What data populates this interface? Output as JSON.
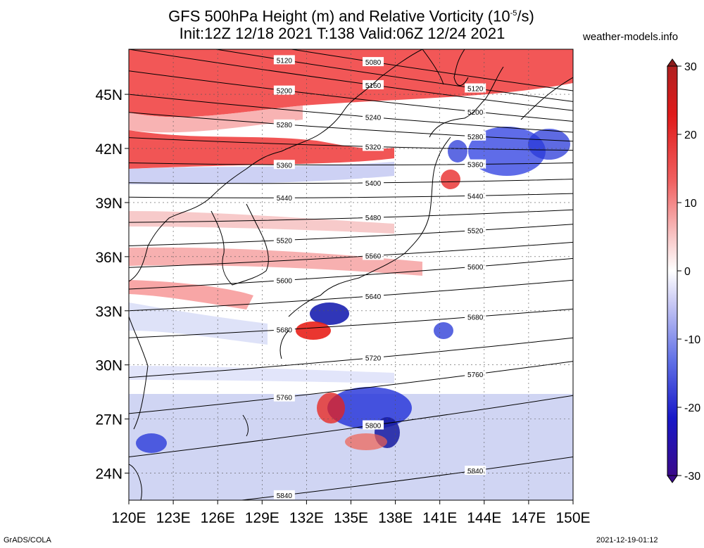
{
  "header": {
    "title_prefix": "GFS 500hPa Height (m) and Relative Vorticity (10",
    "title_exp": "-5",
    "title_suffix": "/s)",
    "subtitle": "Init:12Z 12/18 2021 T:138 Valid:06Z 12/24 2021",
    "site": "weather-models.info"
  },
  "footer": {
    "left": "GrADS/COLA",
    "right": "2021-12-19-01:12"
  },
  "map": {
    "lon_range": [
      120,
      150
    ],
    "lat_range": [
      22.5,
      47.5
    ],
    "lat_ticks": [
      {
        "value": 24,
        "label": "24N"
      },
      {
        "value": 27,
        "label": "27N"
      },
      {
        "value": 30,
        "label": "30N"
      },
      {
        "value": 33,
        "label": "33N"
      },
      {
        "value": 36,
        "label": "36N"
      },
      {
        "value": 39,
        "label": "39N"
      },
      {
        "value": 42,
        "label": "42N"
      },
      {
        "value": 45,
        "label": "45N"
      }
    ],
    "lon_ticks": [
      {
        "value": 120,
        "label": "120E"
      },
      {
        "value": 123,
        "label": "123E"
      },
      {
        "value": 126,
        "label": "126E"
      },
      {
        "value": 129,
        "label": "129E"
      },
      {
        "value": 132,
        "label": "132E"
      },
      {
        "value": 135,
        "label": "135E"
      },
      {
        "value": 138,
        "label": "138E"
      },
      {
        "value": 141,
        "label": "141E"
      },
      {
        "value": 144,
        "label": "144E"
      },
      {
        "value": 147,
        "label": "147E"
      },
      {
        "value": 150,
        "label": "150E"
      }
    ],
    "contours": [
      {
        "value": "5080",
        "lat_w": 49.0,
        "lat_e": 45.2
      },
      {
        "value": "5120",
        "lat_w": 48.3,
        "lat_e": 44.6
      },
      {
        "value": "5160",
        "lat_w": 47.5,
        "lat_e": 44.1
      },
      {
        "value": "5200",
        "lat_w": 46.3,
        "lat_e": 43.5
      },
      {
        "value": "5240",
        "lat_w": 45.0,
        "lat_e": 42.9
      },
      {
        "value": "5280",
        "lat_w": 44.0,
        "lat_e": 42.4
      },
      {
        "value": "5320",
        "lat_w": 42.6,
        "lat_e": 41.9
      },
      {
        "value": "5360",
        "lat_w": 41.2,
        "lat_e": 41.2
      },
      {
        "value": "5400",
        "lat_w": 40.1,
        "lat_e": 40.3
      },
      {
        "value": "5440",
        "lat_w": 39.3,
        "lat_e": 39.5
      },
      {
        "value": "5480",
        "lat_w": 37.9,
        "lat_e": 38.6
      },
      {
        "value": "5520",
        "lat_w": 36.6,
        "lat_e": 37.8
      },
      {
        "value": "5560",
        "lat_w": 35.4,
        "lat_e": 36.8
      },
      {
        "value": "5600",
        "lat_w": 34.2,
        "lat_e": 35.9
      },
      {
        "value": "5640",
        "lat_w": 33.0,
        "lat_e": 34.7
      },
      {
        "value": "5680",
        "lat_w": 31.5,
        "lat_e": 33.1
      },
      {
        "value": "5720",
        "lat_w": 29.3,
        "lat_e": 31.5
      },
      {
        "value": "5760",
        "lat_w": 27.3,
        "lat_e": 30.2
      },
      {
        "value": "5800",
        "lat_w": 24.9,
        "lat_e": 28.3
      },
      {
        "value": "5840",
        "lat_w": 21.8,
        "lat_e": 24.9
      }
    ]
  },
  "colorbar": {
    "ticks": [
      "30",
      "20",
      "10",
      "0",
      "-10",
      "-20",
      "-30"
    ]
  },
  "colors": {
    "positive": "#e8141a",
    "negative": "#1a2fd6",
    "neutral": "#ffffff"
  }
}
